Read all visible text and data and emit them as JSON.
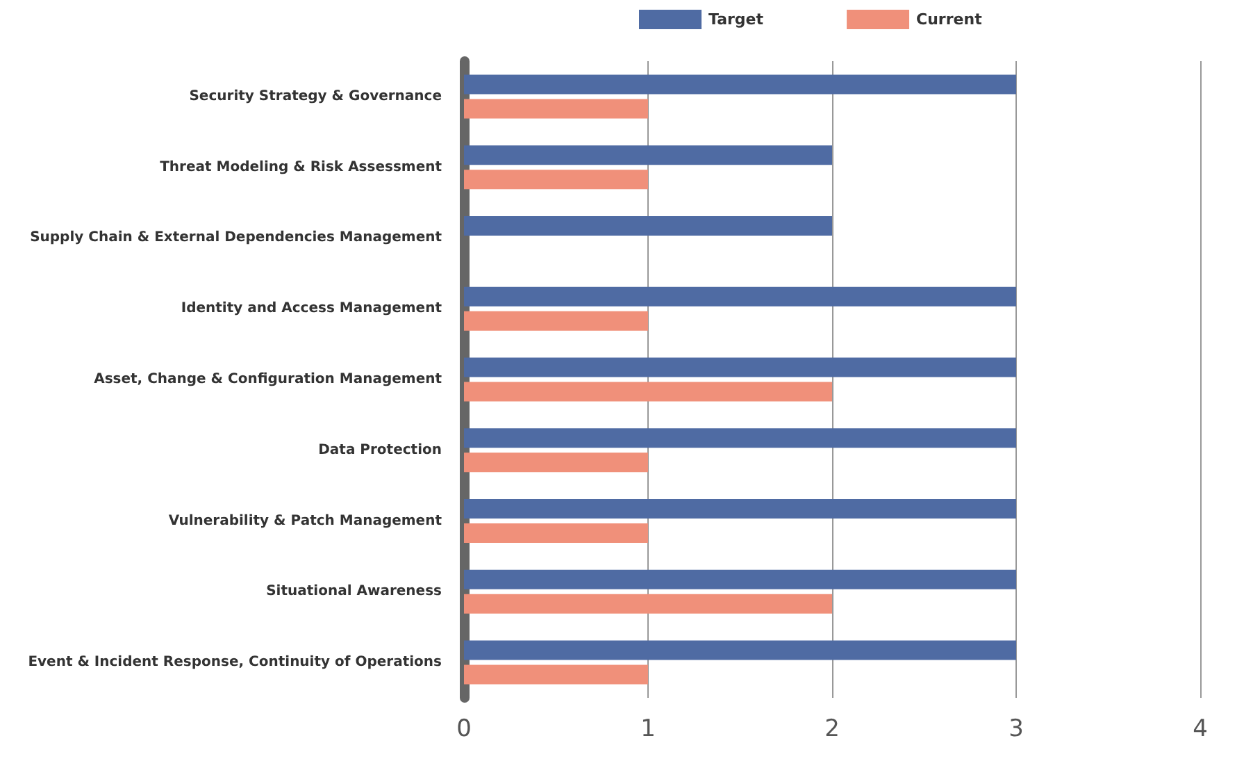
{
  "chart_data": {
    "type": "bar",
    "orientation": "horizontal",
    "categories": [
      "Security Strategy & Governance",
      "Threat Modeling & Risk Assessment",
      "Supply Chain & External Dependencies Management",
      "Identity and Access Management",
      "Asset, Change & Configuration Management",
      "Data Protection",
      "Vulnerability & Patch Management",
      "Situational Awareness",
      "Event & Incident Response, Continuity of Operations"
    ],
    "series": [
      {
        "name": "Target",
        "color": "#4f6ba3",
        "values": [
          3,
          2,
          2,
          3,
          3,
          3,
          3,
          3,
          3
        ]
      },
      {
        "name": "Current",
        "color": "#f0907a",
        "values": [
          1,
          1,
          null,
          1,
          2,
          1,
          1,
          2,
          1
        ]
      }
    ],
    "xlim": [
      0,
      4
    ],
    "xticks": [
      0,
      1,
      2,
      3,
      4
    ],
    "grid": "x",
    "legend": "top"
  }
}
